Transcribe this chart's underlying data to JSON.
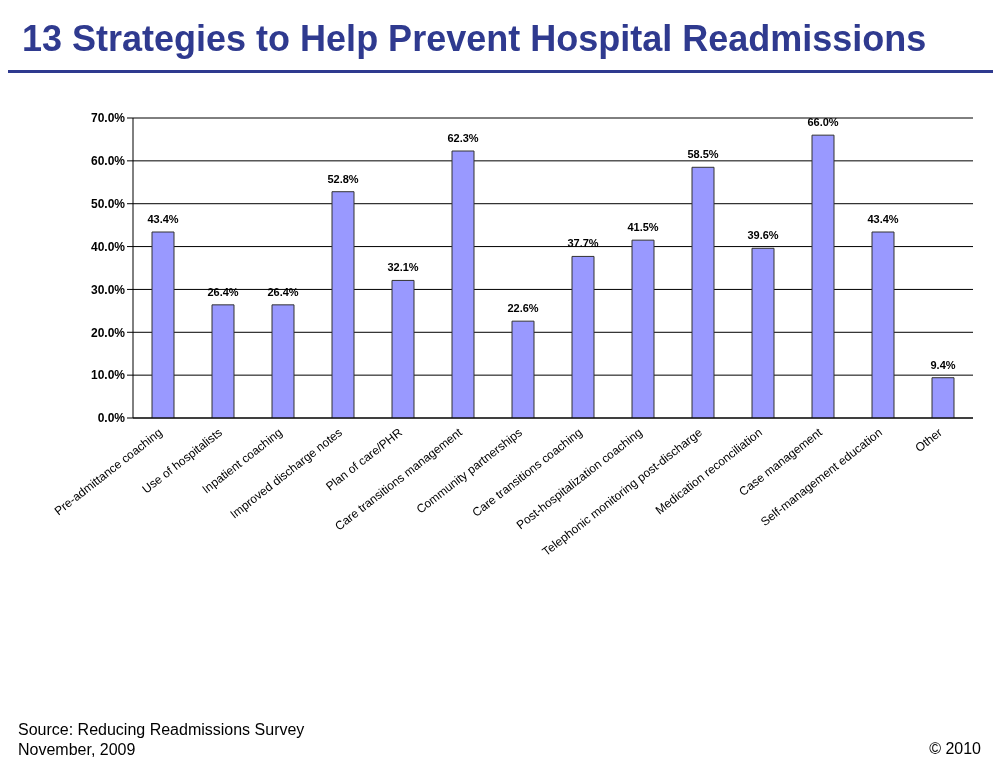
{
  "chart_data": {
    "type": "bar",
    "title": "13 Strategies to Help Prevent Hospital Readmissions",
    "categories": [
      "Pre-admittance coaching",
      "Use of hospitalists",
      "Inpatient coaching",
      "Improved discharge notes",
      "Plan of care/PHR",
      "Care transitions management",
      "Community partnerships",
      "Care transitions coaching",
      "Post-hospitalization coaching",
      "Telephonic monitoring post-discharge",
      "Medication reconciliation",
      "Case management",
      "Self-management education",
      "Other"
    ],
    "values": [
      43.4,
      26.4,
      26.4,
      52.8,
      32.1,
      62.3,
      22.6,
      37.7,
      41.5,
      58.5,
      39.6,
      66.0,
      43.4,
      9.4
    ],
    "value_labels": [
      "43.4%",
      "26.4%",
      "26.4%",
      "52.8%",
      "32.1%",
      "62.3%",
      "22.6%",
      "37.7%",
      "41.5%",
      "58.5%",
      "39.6%",
      "66.0%",
      "43.4%",
      "9.4%"
    ],
    "color": "#9999ff",
    "ylim": [
      0,
      70
    ],
    "yticks": [
      {
        "value": 0,
        "label": "0.0%"
      },
      {
        "value": 10,
        "label": "10.0%"
      },
      {
        "value": 20,
        "label": "20.0%"
      },
      {
        "value": 30,
        "label": "30.0%"
      },
      {
        "value": 40,
        "label": "40.0%"
      },
      {
        "value": 50,
        "label": "50.0%"
      },
      {
        "value": 60,
        "label": "60.0%"
      },
      {
        "value": 70,
        "label": "70.0%"
      }
    ],
    "grid": "y",
    "annotations": [
      "Source: Reducing Readmissions Survey",
      "November, 2009",
      "© 2010"
    ]
  }
}
